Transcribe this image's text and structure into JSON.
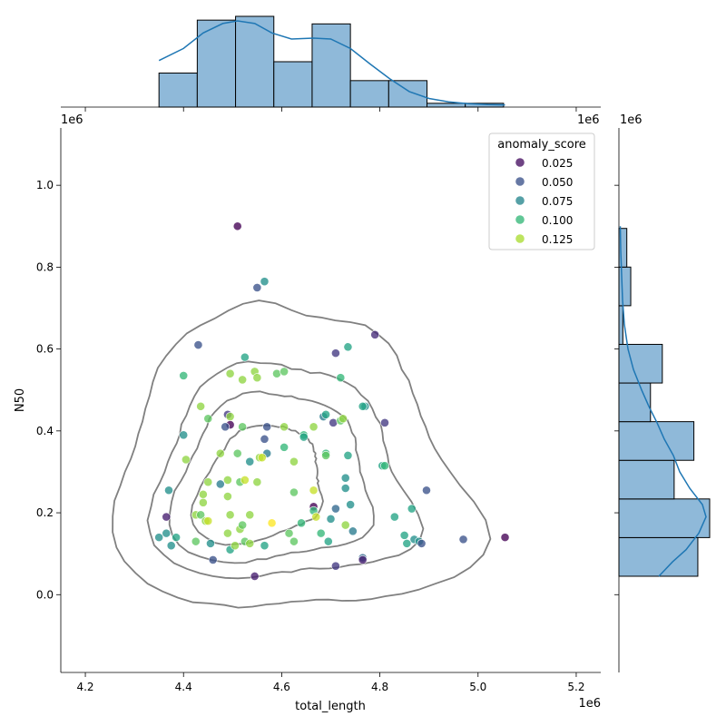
{
  "chart_data": {
    "type": "scatter",
    "title": "",
    "xlabel": "total_length",
    "ylabel": "N50",
    "x_multiplier_label": "1e6",
    "y_multiplier_label": "1e6",
    "x_axis_offset_label": "1e6",
    "xlim": [
      4.15,
      5.25
    ],
    "ylim": [
      -0.19,
      1.14
    ],
    "xticks": [
      "4.2",
      "4.4",
      "4.6",
      "4.8",
      "5.0",
      "5.2"
    ],
    "yticks": [
      "0.0",
      "0.2",
      "0.4",
      "0.6",
      "0.8",
      "1.0"
    ],
    "legend": {
      "title": "anomaly_score",
      "placement": "top-right",
      "entries": [
        {
          "label": "0.025",
          "value": 0.025
        },
        {
          "label": "0.050",
          "value": 0.05
        },
        {
          "label": "0.075",
          "value": 0.075
        },
        {
          "label": "0.100",
          "value": 0.1
        },
        {
          "label": "0.125",
          "value": 0.125
        }
      ]
    },
    "hue_range": [
      0.02,
      0.14
    ],
    "colormap": "viridis",
    "contour_color": "#808080",
    "hist_color": "#8fb9d9",
    "kde_color": "#1f77b4",
    "points": [
      [
        4.51,
        0.9,
        0.02
      ],
      [
        4.55,
        0.75,
        0.05
      ],
      [
        4.565,
        0.765,
        0.08
      ],
      [
        4.79,
        0.635,
        0.035
      ],
      [
        4.43,
        0.61,
        0.05
      ],
      [
        4.71,
        0.59,
        0.04
      ],
      [
        4.735,
        0.605,
        0.09
      ],
      [
        4.525,
        0.58,
        0.09
      ],
      [
        4.4,
        0.535,
        0.1
      ],
      [
        4.495,
        0.54,
        0.12
      ],
      [
        4.545,
        0.545,
        0.12
      ],
      [
        4.55,
        0.53,
        0.12
      ],
      [
        4.52,
        0.525,
        0.12
      ],
      [
        4.59,
        0.54,
        0.11
      ],
      [
        4.605,
        0.545,
        0.11
      ],
      [
        4.72,
        0.53,
        0.1
      ],
      [
        4.77,
        0.46,
        0.08
      ],
      [
        4.765,
        0.46,
        0.09
      ],
      [
        4.81,
        0.42,
        0.04
      ],
      [
        4.435,
        0.46,
        0.12
      ],
      [
        4.45,
        0.43,
        0.11
      ],
      [
        4.49,
        0.44,
        0.04
      ],
      [
        4.495,
        0.435,
        0.12
      ],
      [
        4.4,
        0.39,
        0.08
      ],
      [
        4.495,
        0.415,
        0.02
      ],
      [
        4.485,
        0.41,
        0.05
      ],
      [
        4.52,
        0.41,
        0.11
      ],
      [
        4.57,
        0.41,
        0.05
      ],
      [
        4.605,
        0.41,
        0.12
      ],
      [
        4.665,
        0.41,
        0.12
      ],
      [
        4.685,
        0.435,
        0.07
      ],
      [
        4.69,
        0.44,
        0.09
      ],
      [
        4.705,
        0.42,
        0.04
      ],
      [
        4.72,
        0.425,
        0.11
      ],
      [
        4.725,
        0.43,
        0.12
      ],
      [
        4.565,
        0.38,
        0.05
      ],
      [
        4.645,
        0.39,
        0.1
      ],
      [
        4.645,
        0.385,
        0.09
      ],
      [
        4.605,
        0.36,
        0.1
      ],
      [
        4.475,
        0.345,
        0.12
      ],
      [
        4.51,
        0.345,
        0.11
      ],
      [
        4.57,
        0.345,
        0.07
      ],
      [
        4.405,
        0.33,
        0.12
      ],
      [
        4.535,
        0.325,
        0.08
      ],
      [
        4.555,
        0.335,
        0.12
      ],
      [
        4.56,
        0.335,
        0.13
      ],
      [
        4.625,
        0.325,
        0.12
      ],
      [
        4.69,
        0.345,
        0.1
      ],
      [
        4.69,
        0.34,
        0.11
      ],
      [
        4.735,
        0.34,
        0.09
      ],
      [
        4.805,
        0.315,
        0.09
      ],
      [
        4.81,
        0.315,
        0.1
      ],
      [
        4.37,
        0.255,
        0.08
      ],
      [
        4.45,
        0.275,
        0.12
      ],
      [
        4.475,
        0.27,
        0.07
      ],
      [
        4.49,
        0.28,
        0.12
      ],
      [
        4.515,
        0.275,
        0.11
      ],
      [
        4.525,
        0.28,
        0.13
      ],
      [
        4.55,
        0.275,
        0.12
      ],
      [
        4.625,
        0.25,
        0.11
      ],
      [
        4.665,
        0.255,
        0.13
      ],
      [
        4.73,
        0.285,
        0.08
      ],
      [
        4.73,
        0.26,
        0.08
      ],
      [
        4.895,
        0.255,
        0.05
      ],
      [
        4.44,
        0.245,
        0.12
      ],
      [
        4.49,
        0.24,
        0.12
      ],
      [
        4.44,
        0.225,
        0.12
      ],
      [
        4.665,
        0.215,
        0.02
      ],
      [
        4.665,
        0.205,
        0.1
      ],
      [
        4.71,
        0.21,
        0.06
      ],
      [
        4.74,
        0.22,
        0.08
      ],
      [
        4.365,
        0.19,
        0.03
      ],
      [
        4.425,
        0.195,
        0.12
      ],
      [
        4.435,
        0.195,
        0.11
      ],
      [
        4.445,
        0.18,
        0.12
      ],
      [
        4.45,
        0.18,
        0.13
      ],
      [
        4.495,
        0.195,
        0.12
      ],
      [
        4.535,
        0.195,
        0.12
      ],
      [
        4.58,
        0.175,
        0.14
      ],
      [
        4.67,
        0.19,
        0.13
      ],
      [
        4.7,
        0.185,
        0.08
      ],
      [
        4.73,
        0.17,
        0.12
      ],
      [
        4.83,
        0.19,
        0.09
      ],
      [
        4.865,
        0.21,
        0.09
      ],
      [
        4.365,
        0.15,
        0.08
      ],
      [
        4.375,
        0.12,
        0.08
      ],
      [
        4.385,
        0.14,
        0.09
      ],
      [
        4.425,
        0.13,
        0.11
      ],
      [
        4.455,
        0.125,
        0.08
      ],
      [
        4.49,
        0.15,
        0.12
      ],
      [
        4.495,
        0.11,
        0.09
      ],
      [
        4.505,
        0.12,
        0.12
      ],
      [
        4.515,
        0.16,
        0.12
      ],
      [
        4.52,
        0.17,
        0.11
      ],
      [
        4.525,
        0.13,
        0.11
      ],
      [
        4.535,
        0.125,
        0.12
      ],
      [
        4.565,
        0.12,
        0.09
      ],
      [
        4.615,
        0.15,
        0.11
      ],
      [
        4.625,
        0.13,
        0.11
      ],
      [
        4.64,
        0.175,
        0.1
      ],
      [
        4.68,
        0.15,
        0.1
      ],
      [
        4.695,
        0.13,
        0.09
      ],
      [
        4.745,
        0.155,
        0.07
      ],
      [
        4.765,
        0.09,
        0.06
      ],
      [
        4.765,
        0.085,
        0.03
      ],
      [
        4.85,
        0.145,
        0.09
      ],
      [
        4.855,
        0.125,
        0.09
      ],
      [
        4.87,
        0.135,
        0.08
      ],
      [
        4.88,
        0.13,
        0.08
      ],
      [
        4.885,
        0.125,
        0.05
      ],
      [
        4.97,
        0.135,
        0.05
      ],
      [
        5.055,
        0.14,
        0.02
      ],
      [
        4.46,
        0.085,
        0.05
      ],
      [
        4.545,
        0.045,
        0.03
      ],
      [
        4.71,
        0.07,
        0.04
      ],
      [
        4.35,
        0.14,
        0.08
      ]
    ],
    "x_hist": {
      "bins": [
        4.35,
        4.428,
        4.506,
        4.584,
        4.662,
        4.74,
        4.818,
        4.896,
        4.974,
        5.052
      ],
      "counts": [
        9,
        23,
        24,
        12,
        22,
        7,
        7,
        1,
        1
      ]
    },
    "x_kde": [
      [
        4.35,
        0.54
      ],
      [
        4.4,
        0.68
      ],
      [
        4.44,
        0.86
      ],
      [
        4.48,
        0.97
      ],
      [
        4.51,
        1.0
      ],
      [
        4.545,
        0.97
      ],
      [
        4.58,
        0.86
      ],
      [
        4.62,
        0.79
      ],
      [
        4.665,
        0.8
      ],
      [
        4.7,
        0.79
      ],
      [
        4.74,
        0.68
      ],
      [
        4.78,
        0.5
      ],
      [
        4.82,
        0.33
      ],
      [
        4.86,
        0.18
      ],
      [
        4.9,
        0.1
      ],
      [
        4.94,
        0.06
      ],
      [
        4.98,
        0.04
      ],
      [
        5.02,
        0.03
      ],
      [
        5.055,
        0.025
      ]
    ],
    "y_hist": {
      "bins": [
        0.045,
        0.1394,
        0.2338,
        0.3282,
        0.4226,
        0.517,
        0.6114,
        0.7058,
        0.8002,
        0.8946
      ],
      "counts": [
        20,
        23,
        14,
        19,
        8,
        11,
        1,
        3,
        2
      ]
    },
    "y_kde": [
      [
        0.045,
        0.44
      ],
      [
        0.08,
        0.59
      ],
      [
        0.11,
        0.74
      ],
      [
        0.15,
        0.88
      ],
      [
        0.19,
        0.96
      ],
      [
        0.22,
        0.92
      ],
      [
        0.26,
        0.78
      ],
      [
        0.3,
        0.67
      ],
      [
        0.34,
        0.6
      ],
      [
        0.38,
        0.5
      ],
      [
        0.42,
        0.42
      ],
      [
        0.46,
        0.33
      ],
      [
        0.5,
        0.25
      ],
      [
        0.55,
        0.16
      ],
      [
        0.6,
        0.1
      ],
      [
        0.66,
        0.06
      ],
      [
        0.72,
        0.04
      ],
      [
        0.78,
        0.03
      ],
      [
        0.84,
        0.02
      ],
      [
        0.9,
        0.015
      ]
    ]
  }
}
